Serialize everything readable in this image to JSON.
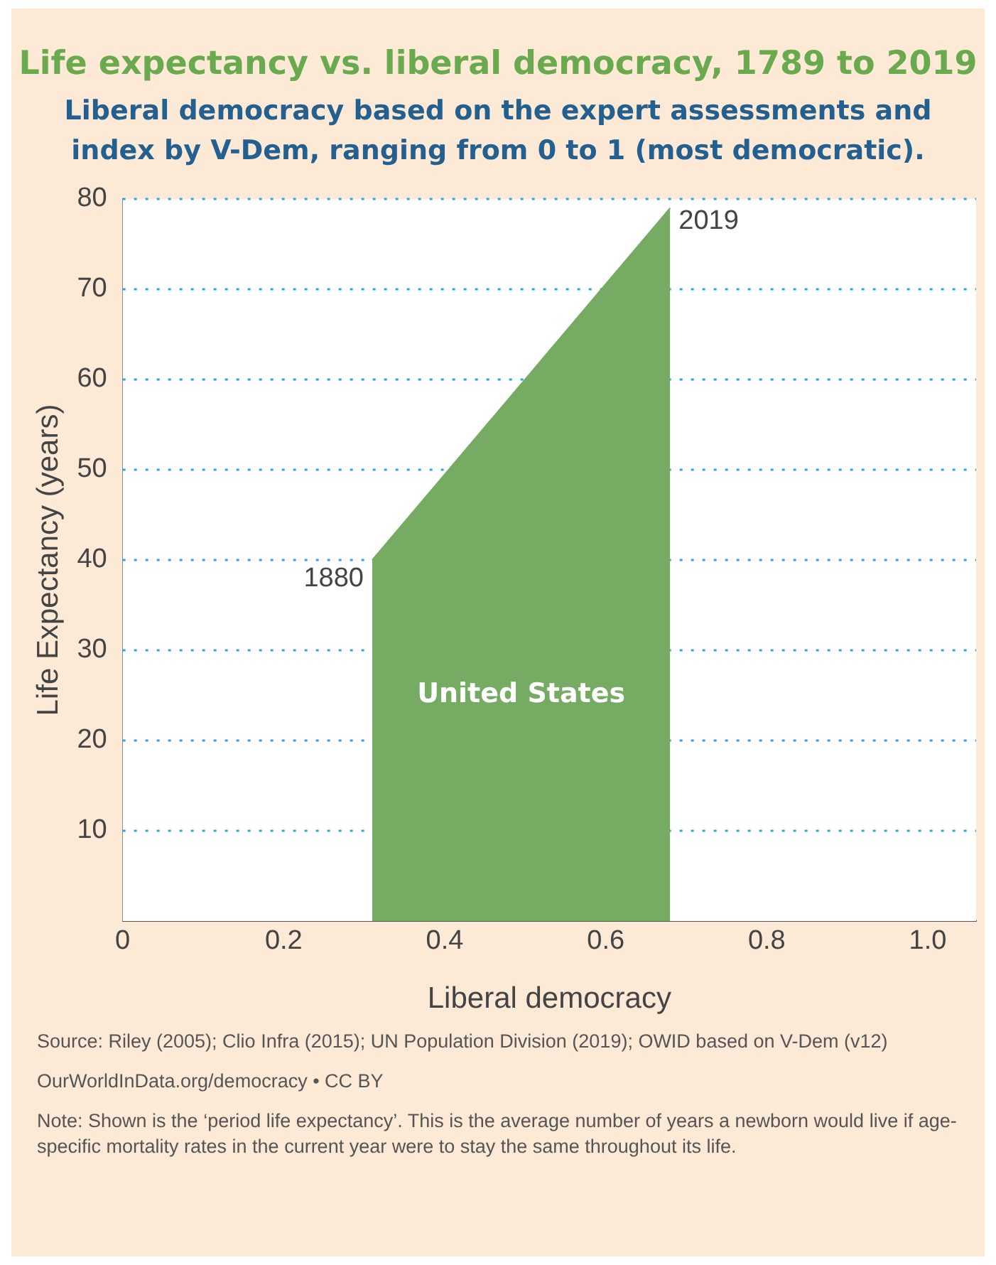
{
  "chart_data": {
    "type": "area",
    "title": "Life expectancy vs. liberal democracy, 1789 to 2019",
    "subtitle": "Liberal democracy based on the expert assessments and index by V-Dem, ranging from 0 to 1 (most democratic).",
    "xlabel": "Liberal democracy",
    "ylabel": "Life Expectancy (years)",
    "series": [
      {
        "name": "United States",
        "color": "#75ab63",
        "x": [
          0.31,
          0.68
        ],
        "values": [
          40,
          79
        ]
      }
    ],
    "xlim": [
      0,
      1.06
    ],
    "xticks": [
      0,
      0.2,
      0.4,
      0.6,
      0.8,
      {
        "value": 1,
        "label": "1.0"
      }
    ],
    "ylim": [
      0,
      80
    ],
    "yticks": [
      {
        "value": 0,
        "label": null
      },
      10,
      20,
      30,
      40,
      50,
      60,
      70,
      80
    ],
    "grid": "y",
    "legend": false,
    "annotations": [
      {
        "text": "1880",
        "x": 0.31,
        "y": 40
      },
      {
        "text": "2019",
        "x": 0.68,
        "y": 79
      },
      "Source: Riley (2005); Clio Infra (2015); UN Population Division (2019); OWID based on V-Dem (v12)",
      "OurWorldInData.org/democracy • CC BY",
      "Note: Shown is the ‘period life expectancy’. This is the average number of years a newborn would live if age-specific mortality rates in the current year were to stay the same throughout its life."
    ]
  }
}
